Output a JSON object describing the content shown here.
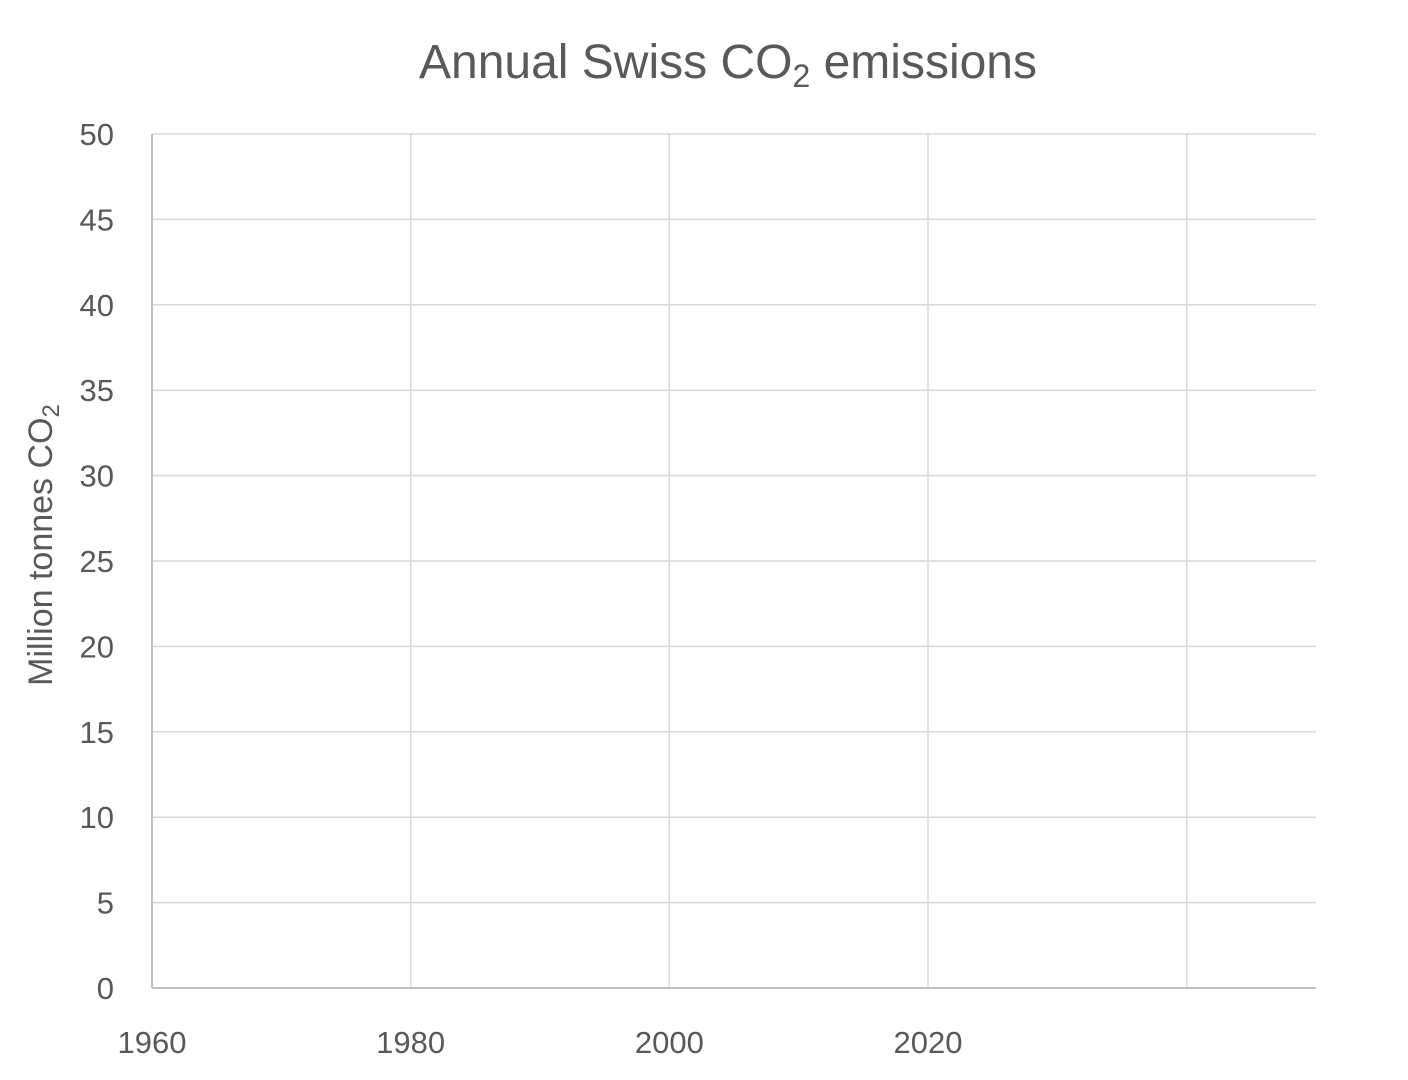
{
  "chart_data": {
    "type": "line",
    "title": {
      "main": "Annual Swiss CO",
      "subscript": "2",
      "suffix": " emissions"
    },
    "xlabel": "",
    "ylabel": {
      "main": "Million tonnes CO",
      "subscript": "2"
    },
    "xlim": [
      1960,
      2050
    ],
    "ylim": [
      0,
      50
    ],
    "x_ticks": [
      1960,
      1980,
      2000,
      2020
    ],
    "x_gridlines": [
      1980,
      2000,
      2020,
      2040
    ],
    "y_ticks": [
      0,
      5,
      10,
      15,
      20,
      25,
      30,
      35,
      40,
      45,
      50
    ],
    "grid": true,
    "legend": "none",
    "series": [],
    "colors": {
      "text": "#595959",
      "grid": "#d9d9d9",
      "axis": "#bfbfbf"
    }
  }
}
